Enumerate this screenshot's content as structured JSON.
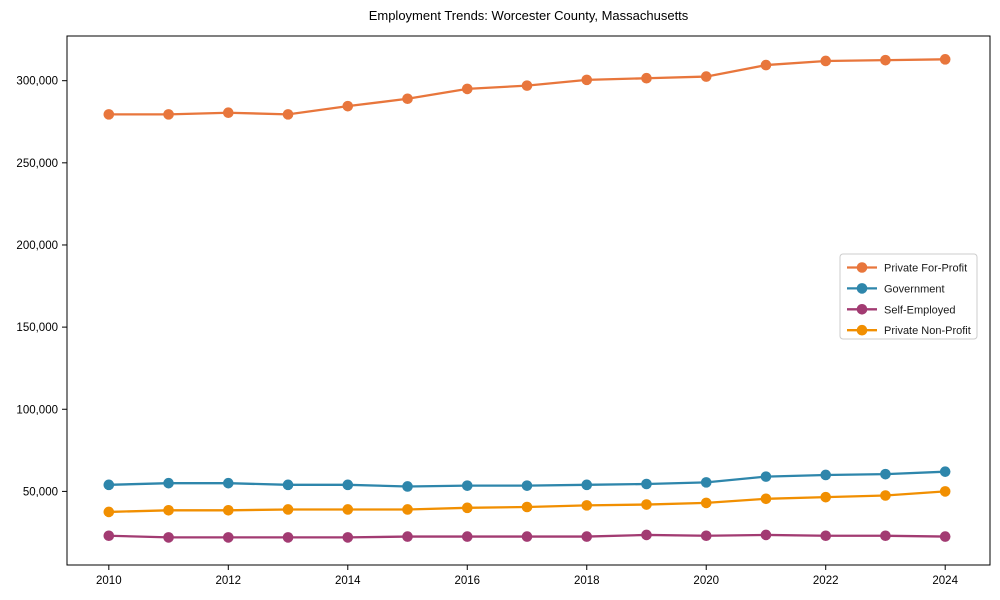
{
  "chart_data": {
    "type": "line",
    "title": "Employment Trends: Worcester County, Massachusetts",
    "xlabel": "",
    "ylabel": "",
    "x": [
      2010,
      2011,
      2012,
      2013,
      2014,
      2015,
      2016,
      2017,
      2018,
      2019,
      2020,
      2021,
      2022,
      2023,
      2024
    ],
    "x_tick_labels": [
      "2010",
      "2012",
      "2014",
      "2016",
      "2018",
      "2020",
      "2022",
      "2024"
    ],
    "y_tick_values": [
      50000,
      100000,
      150000,
      200000,
      250000,
      300000
    ],
    "y_tick_labels": [
      "50,000",
      "100,000",
      "150,000",
      "200,000",
      "250,000",
      "300,000"
    ],
    "xlim": [
      2009.3,
      2024.75
    ],
    "ylim": [
      5200,
      327200
    ],
    "grid": false,
    "legend_position": "center right",
    "marker": "circle",
    "series": [
      {
        "name": "Private For-Profit",
        "color": "#E8763C",
        "values": [
          279500,
          279500,
          280500,
          279500,
          284500,
          289000,
          295000,
          297000,
          300500,
          301500,
          302500,
          309500,
          312000,
          312500,
          313000
        ]
      },
      {
        "name": "Government",
        "color": "#2E86AB",
        "values": [
          54000,
          55000,
          55000,
          54000,
          54000,
          53000,
          53500,
          53500,
          54000,
          54500,
          55500,
          59000,
          60000,
          60500,
          62000
        ]
      },
      {
        "name": "Self-Employed",
        "color": "#A23B72",
        "values": [
          23000,
          22000,
          22000,
          22000,
          22000,
          22500,
          22500,
          22500,
          22500,
          23500,
          23000,
          23500,
          23000,
          23000,
          22500
        ]
      },
      {
        "name": "Private Non-Profit",
        "color": "#F18F01",
        "values": [
          37500,
          38500,
          38500,
          39000,
          39000,
          39000,
          40000,
          40500,
          41500,
          42000,
          43000,
          45500,
          46500,
          47500,
          50000
        ]
      }
    ]
  }
}
